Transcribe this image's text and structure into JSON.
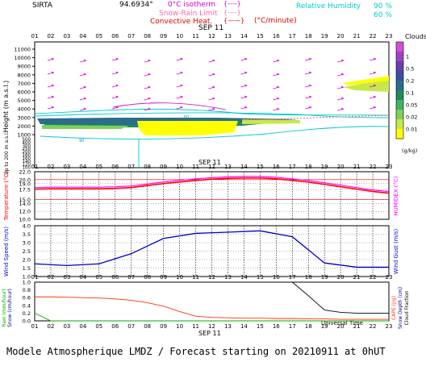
{
  "header": {
    "station": "SIRTA",
    "coords": "94.6934°",
    "isotherm_label": "0°C isotherm",
    "snow_rain_label": "Snow-Rain Limit",
    "convective_label": "Convective Heat.",
    "convective_unit": "(°C/minute)",
    "rh_label": "Relative Humidity",
    "rh_90": "90 %",
    "rh_60": "60 %"
  },
  "x_ticks": [
    "01",
    "02",
    "03",
    "04",
    "05",
    "06",
    "07",
    "08",
    "09",
    "10",
    "11",
    "12",
    "13",
    "14",
    "15",
    "16",
    "17",
    "18",
    "19",
    "20",
    "21",
    "22",
    "23"
  ],
  "date_label": "SEP 11",
  "universal_time": "Universal Time",
  "footer": "Modele Atmospherique LMDZ / Forecast starting on 20210911 at 0hUT",
  "colors": {
    "clouds_scale": [
      "#ffff00",
      "#c8e84a",
      "#7fd05a",
      "#3fb26a",
      "#1e8c5a",
      "#2a6e8c",
      "#3a4fa0",
      "#6a3fb0",
      "#a23fc8",
      "#d24fd8"
    ],
    "temperature": "#ff0000",
    "humidex": "#ff00ff",
    "wind_speed": "#0000cc",
    "rain": "#00aa00",
    "snow": "#000080",
    "cloud_fraction": "#000000",
    "cape": "#ff3300"
  },
  "chart_data": [
    {
      "type": "heatmap",
      "title": "Clouds",
      "unit": "(g/kg)",
      "ylabel": "Height (m a.s.l.)",
      "ylabel_low": "Up to 200 m a.s.l.",
      "y_ticks": [
        "11000",
        "10000",
        "9000",
        "8000",
        "7000",
        "6000",
        "5000",
        "4000",
        "3000",
        "2000",
        "1000",
        "500",
        "400",
        "300",
        "250",
        "200",
        "180",
        "160",
        "140",
        "120",
        "100"
      ],
      "legend_ticks": [
        "1",
        "0.5",
        "0.2",
        "0.1",
        "0.05",
        "0.02",
        "0.01"
      ],
      "rh_contour_labels": [
        "90",
        "60"
      ]
    },
    {
      "type": "line",
      "ylabel": "Temperature (°C)",
      "ylabel_right": "HUMIDEX (°C)",
      "ylim": [
        10,
        22
      ],
      "y_ticks": [
        "22.0",
        "20.0",
        "19.0",
        "17.5",
        "15.0",
        "14.0",
        "12.0",
        "10.0"
      ],
      "x": [
        1,
        2,
        3,
        4,
        5,
        6,
        7,
        8,
        9,
        10,
        11,
        12,
        13,
        14,
        15,
        16,
        17,
        18,
        19,
        20,
        21,
        22,
        23
      ],
      "series": [
        {
          "name": "Temperature",
          "values": [
            17.6,
            17.7,
            17.7,
            17.7,
            17.7,
            17.8,
            18.0,
            18.5,
            19.0,
            19.4,
            19.8,
            20.1,
            20.3,
            20.4,
            20.4,
            20.2,
            19.8,
            19.4,
            18.8,
            18.2,
            17.6,
            17.0,
            16.6
          ]
        },
        {
          "name": "HUMIDEX",
          "values": [
            18.0,
            18.1,
            18.1,
            18.1,
            18.1,
            18.2,
            18.4,
            18.9,
            19.4,
            19.8,
            20.2,
            20.5,
            20.7,
            20.8,
            20.8,
            20.6,
            20.2,
            19.8,
            19.2,
            18.6,
            18.0,
            17.4,
            17.0
          ]
        }
      ]
    },
    {
      "type": "line",
      "ylabel": "Wind Speed (m/s)",
      "ylabel_right": "Wind Gust (m/s)",
      "ylim": [
        1.0,
        4.0
      ],
      "y_ticks": [
        "4.0",
        "3.5",
        "3.0",
        "2.5",
        "2.0",
        "1.5",
        "1.0"
      ],
      "x": [
        1,
        3,
        5,
        7,
        9,
        11,
        13,
        15,
        17,
        19,
        21,
        23
      ],
      "series": [
        {
          "name": "Wind Speed",
          "values": [
            1.75,
            1.65,
            1.75,
            2.35,
            3.25,
            3.55,
            3.62,
            3.7,
            3.35,
            1.8,
            1.55,
            1.55
          ]
        }
      ]
    },
    {
      "type": "line",
      "ylabel": "Rain (mm/hour)",
      "ylabel2": "Snow (cm/hour)",
      "ylabel_right": "CAPE (J/g)",
      "ylabel_right2": "Snow Depth (cm)",
      "ylabel_right3": "Cloud Fraction",
      "ylim": [
        0,
        1.0
      ],
      "y_ticks": [
        "1.0",
        "0.8",
        "0.6",
        "0.4",
        "0.2",
        "0.0"
      ],
      "x": [
        1,
        2,
        3,
        4,
        5,
        6,
        7,
        8,
        9,
        10,
        11,
        12,
        13,
        14,
        15,
        16,
        17,
        18,
        19,
        20,
        21,
        22,
        23
      ],
      "series": [
        {
          "name": "CAPE",
          "values": [
            0.62,
            0.62,
            0.61,
            0.6,
            0.59,
            0.57,
            0.53,
            0.47,
            0.38,
            0.24,
            0.12,
            0.09,
            0.08,
            0.07,
            0.07,
            0.06,
            0.06,
            0.05,
            0.05,
            0.04,
            0.04,
            0.04,
            0.04
          ]
        },
        {
          "name": "Cloud Fraction",
          "values": [
            null,
            null,
            null,
            null,
            null,
            null,
            null,
            null,
            null,
            null,
            null,
            null,
            null,
            null,
            null,
            null,
            1.0,
            0.65,
            0.28,
            0.22,
            0.2,
            0.2,
            0.2
          ]
        },
        {
          "name": "Rain",
          "values": [
            0.2,
            0.0,
            0.0,
            0.0,
            0.0,
            0.0,
            0.0,
            0.0,
            0.0,
            0.0,
            0.0,
            0.0,
            0.0,
            0.0,
            0.0,
            0.0,
            0.0,
            0.0,
            0.0,
            0.0,
            0.0,
            0.0,
            0.0
          ]
        }
      ]
    }
  ]
}
